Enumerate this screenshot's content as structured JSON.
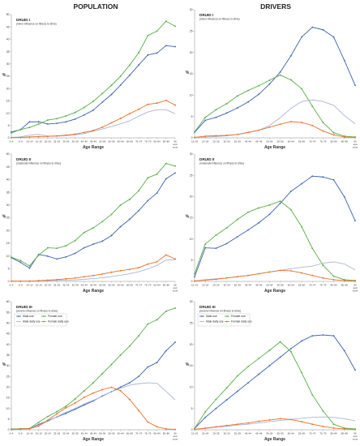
{
  "column_titles": [
    "POPULATION",
    "DRIVERS"
  ],
  "legend_labels": [
    "Male use",
    "Female use",
    "Male daily use",
    "Female daily use"
  ],
  "series_colors": [
    "#3a62b0",
    "#58ad46",
    "#a7b6d8",
    "#e8702a"
  ],
  "chart_data": [
    {
      "type": "line",
      "title": "DRUID I",
      "subtitle": "(minor influence on fitness to drive)",
      "xlabel": "Age Range",
      "ylabel": "%",
      "ylim": [
        0,
        50
      ],
      "yticks": [
        0,
        5,
        10,
        15,
        20,
        25,
        30,
        35,
        40,
        45,
        50
      ],
      "x": [
        "0–4",
        "5–9",
        "10–14",
        "15–19",
        "20–24",
        "25–29",
        "30–34",
        "35–39",
        "40–44",
        "45–49",
        "50–54",
        "55–59",
        "60–64",
        "65–69",
        "70–74",
        "75–79",
        "80–84",
        "85–89",
        "90 and more"
      ],
      "legend": false,
      "grid": false,
      "series": [
        {
          "name": "Male use",
          "values": [
            2.4,
            3.3,
            6.5,
            6.5,
            5.6,
            5.9,
            6.5,
            7.6,
            9.3,
            11.2,
            14.5,
            17.6,
            21.4,
            25.4,
            29.6,
            33.6,
            34.4,
            37.4,
            37.0
          ]
        },
        {
          "name": "Female use",
          "values": [
            2.0,
            3.4,
            4.2,
            5.6,
            7.2,
            7.8,
            8.9,
            10.3,
            12.3,
            14.8,
            18.0,
            21.3,
            25.0,
            29.5,
            34.5,
            41.5,
            43.3,
            47.3,
            45.3
          ]
        },
        {
          "name": "Male daily use",
          "values": [
            0.2,
            0.4,
            1.1,
            1.4,
            0.7,
            0.7,
            0.9,
            1.2,
            1.7,
            2.7,
            3.6,
            4.6,
            5.7,
            6.9,
            8.8,
            10.5,
            11.4,
            11.4,
            9.8
          ]
        },
        {
          "name": "Female daily use",
          "values": [
            0.1,
            0.2,
            0.4,
            0.5,
            0.6,
            0.8,
            1.1,
            1.5,
            2.2,
            3.0,
            4.3,
            6.1,
            7.9,
            9.8,
            11.6,
            13.6,
            14.1,
            15.2,
            13.3
          ]
        }
      ]
    },
    {
      "type": "line",
      "title": "DRUID II",
      "subtitle": "(moderate influence on fitness to drive)",
      "xlabel": "Age Range",
      "ylabel": "%",
      "ylim": [
        0,
        50
      ],
      "yticks": [
        0,
        5,
        10,
        15,
        20,
        25,
        30,
        35,
        40,
        45,
        50
      ],
      "x": [
        "0–4",
        "5–9",
        "10–14",
        "15–19",
        "20–24",
        "25–29",
        "30–34",
        "35–39",
        "40–44",
        "45–49",
        "50–54",
        "55–59",
        "60–64",
        "65–69",
        "70–74",
        "75–79",
        "80–84",
        "85–89",
        "90 and more"
      ],
      "legend": false,
      "grid": false,
      "series": [
        {
          "name": "Male use",
          "values": [
            9.3,
            7.5,
            5.2,
            10.6,
            9.9,
            8.8,
            9.6,
            11.0,
            13.2,
            14.6,
            15.8,
            18.0,
            21.5,
            24.4,
            27.8,
            31.7,
            34.7,
            40.3,
            42.6
          ]
        },
        {
          "name": "Female use",
          "values": [
            9.5,
            8.2,
            6.1,
            10.3,
            13.2,
            13.0,
            14.0,
            16.0,
            19.2,
            21.0,
            23.5,
            26.3,
            30.0,
            32.2,
            35.6,
            40.7,
            42.1,
            46.3,
            45.3
          ]
        },
        {
          "name": "Male daily use",
          "values": [
            0.1,
            0.1,
            0.1,
            0.2,
            0.3,
            0.4,
            0.5,
            0.6,
            0.8,
            1.1,
            1.4,
            1.9,
            2.4,
            3.0,
            3.8,
            4.9,
            6.3,
            8.4,
            8.5
          ]
        },
        {
          "name": "Female daily use",
          "values": [
            0.1,
            0.1,
            0.1,
            0.3,
            0.5,
            0.7,
            1.0,
            1.3,
            1.8,
            2.3,
            2.9,
            3.6,
            4.2,
            4.7,
            5.4,
            6.8,
            7.7,
            10.4,
            8.8
          ]
        }
      ]
    },
    {
      "type": "line",
      "title": "DRUID III",
      "subtitle": "(severe influence on fitness to drive)",
      "xlabel": "Age Range",
      "ylabel": "%",
      "ylim": [
        0,
        60
      ],
      "yticks": [
        0,
        5,
        10,
        15,
        20,
        25,
        30,
        35,
        40,
        45,
        50,
        55,
        60
      ],
      "x": [
        "0–4",
        "5–9",
        "10–14",
        "15–19",
        "20–24",
        "25–29",
        "30–34",
        "35–39",
        "40–44",
        "45–49",
        "50–54",
        "55–59",
        "60–64",
        "65–69",
        "70–74",
        "75–79",
        "80–84",
        "85–89",
        "90 and more"
      ],
      "legend": true,
      "legend_position": "upper-left",
      "grid": false,
      "series": [
        {
          "name": "Male use",
          "values": [
            0.3,
            0.5,
            0.5,
            2.5,
            4.2,
            6.0,
            7.7,
            9.6,
            11.6,
            13.5,
            15.8,
            17.8,
            20.0,
            22.0,
            25.0,
            29.4,
            31.5,
            37.0,
            41.0
          ]
        },
        {
          "name": "Female use",
          "values": [
            0.3,
            0.5,
            0.6,
            3.5,
            6.2,
            8.5,
            11.0,
            14.4,
            18.2,
            22.0,
            26.3,
            30.6,
            35.0,
            39.2,
            44.0,
            49.5,
            51.5,
            55.5,
            57.0
          ]
        },
        {
          "name": "Male daily use",
          "values": [
            0.1,
            0.4,
            0.5,
            2.2,
            3.9,
            6.1,
            8.2,
            10.0,
            12.1,
            13.8,
            15.6,
            17.8,
            19.5,
            20.9,
            21.6,
            22.0,
            21.8,
            18.0,
            14.0
          ]
        },
        {
          "name": "Female daily use",
          "values": [
            0.1,
            0.3,
            0.5,
            1.7,
            4.5,
            7.5,
            10.3,
            12.5,
            15.2,
            17.2,
            18.8,
            19.9,
            18.3,
            14.2,
            9.0,
            3.6,
            1.4,
            0.4,
            0.2
          ]
        }
      ]
    },
    {
      "type": "line",
      "title": "DRUID I",
      "subtitle": "(minor influence on fitness to drive)",
      "xlabel": "Age Range",
      "ylabel": "%",
      "ylim": [
        0,
        30
      ],
      "yticks": [
        0,
        5,
        10,
        15,
        20,
        25,
        30
      ],
      "x": [
        "15–19",
        "20–24",
        "25–29",
        "30–34",
        "35–39",
        "40–44",
        "45–49",
        "50–54",
        "55–59",
        "60–64",
        "65–69",
        "70–74",
        "75–79",
        "80–84",
        "85–89",
        "90 and more"
      ],
      "legend": false,
      "grid": false,
      "series": [
        {
          "name": "Male use",
          "values": [
            1.3,
            4.1,
            4.8,
            5.8,
            7.0,
            8.4,
            10.2,
            12.6,
            15.4,
            19.2,
            23.6,
            25.9,
            25.3,
            23.6,
            18.1,
            12.3
          ]
        },
        {
          "name": "Female use",
          "values": [
            1.4,
            4.8,
            6.6,
            8.0,
            9.8,
            11.1,
            12.2,
            13.5,
            14.7,
            13.6,
            11.5,
            7.4,
            3.6,
            1.2,
            0.4,
            0.2
          ]
        },
        {
          "name": "Male daily use",
          "values": [
            0.1,
            0.2,
            0.3,
            0.5,
            0.8,
            1.2,
            1.8,
            2.9,
            4.7,
            6.9,
            8.5,
            8.9,
            8.5,
            7.6,
            5.2,
            3.3
          ]
        },
        {
          "name": "Female daily use",
          "values": [
            0.1,
            0.4,
            0.5,
            0.6,
            0.8,
            1.3,
            1.8,
            2.5,
            3.2,
            3.8,
            3.6,
            2.9,
            1.6,
            0.7,
            0.2,
            0.1
          ]
        }
      ]
    },
    {
      "type": "line",
      "title": "DRUID II",
      "subtitle": "(moderate influence on fitness to drive)",
      "xlabel": "Age Range",
      "ylabel": "%",
      "ylim": [
        0,
        30
      ],
      "yticks": [
        0,
        5,
        10,
        15,
        20,
        25,
        30
      ],
      "x": [
        "15–19",
        "20–24",
        "25–29",
        "30–34",
        "35–39",
        "40–44",
        "45–49",
        "50–54",
        "55–59",
        "60–64",
        "65–69",
        "70–74",
        "75–79",
        "80–84",
        "85–89",
        "90 and more"
      ],
      "legend": false,
      "grid": false,
      "series": [
        {
          "name": "Male use",
          "values": [
            1.1,
            7.9,
            7.8,
            8.9,
            10.5,
            12.1,
            13.8,
            15.8,
            18.4,
            21.2,
            23.0,
            24.8,
            24.6,
            23.9,
            19.9,
            14.3
          ]
        },
        {
          "name": "Female use",
          "values": [
            1.8,
            8.8,
            10.9,
            12.6,
            14.6,
            16.3,
            17.3,
            18.0,
            18.9,
            16.9,
            12.9,
            7.8,
            3.8,
            1.2,
            0.4,
            0.2
          ]
        },
        {
          "name": "Male daily use",
          "values": [
            0.1,
            0.4,
            0.6,
            0.8,
            1.1,
            1.4,
            1.8,
            2.2,
            2.6,
            3.0,
            3.3,
            3.6,
            4.3,
            4.6,
            4.1,
            2.7
          ]
        },
        {
          "name": "Female daily use",
          "values": [
            0.1,
            0.3,
            0.5,
            0.8,
            1.1,
            1.4,
            1.8,
            2.2,
            2.6,
            2.5,
            2.0,
            1.4,
            0.8,
            0.4,
            0.2,
            0.1
          ]
        }
      ]
    },
    {
      "type": "line",
      "title": "DRUID III",
      "subtitle": "(severe influence on fitness to drive)",
      "xlabel": "Age Range",
      "ylabel": "%",
      "ylim": [
        0,
        30
      ],
      "yticks": [
        0,
        5,
        10,
        15,
        20,
        25,
        30
      ],
      "x": [
        "15–19",
        "20–24",
        "25–29",
        "30–34",
        "35–39",
        "40–44",
        "45–49",
        "50–54",
        "55–59",
        "60–64",
        "65–69",
        "70–74",
        "75–79",
        "80–84",
        "85–89",
        "90 and more"
      ],
      "legend": true,
      "legend_position": "upper-left",
      "grid": false,
      "series": [
        {
          "name": "Male use",
          "values": [
            0.3,
            2.9,
            5.0,
            7.0,
            9.0,
            11.0,
            13.0,
            15.0,
            17.0,
            19.0,
            20.8,
            22.0,
            22.2,
            22.0,
            18.5,
            14.0
          ]
        },
        {
          "name": "Female use",
          "values": [
            0.3,
            4.2,
            7.1,
            9.8,
            12.6,
            14.8,
            16.7,
            18.6,
            20.6,
            18.3,
            13.4,
            8.2,
            4.4,
            1.3,
            0.4,
            0.2
          ]
        },
        {
          "name": "Male daily use",
          "values": [
            0.1,
            0.3,
            0.6,
            0.8,
            1.1,
            1.3,
            1.6,
            1.9,
            2.2,
            2.4,
            2.7,
            2.9,
            3.0,
            2.9,
            2.6,
            2.1
          ]
        },
        {
          "name": "Female daily use",
          "values": [
            0.1,
            0.4,
            0.7,
            1.0,
            1.3,
            1.6,
            2.0,
            2.3,
            2.6,
            2.4,
            1.9,
            1.3,
            0.8,
            0.4,
            0.2,
            0.1
          ]
        }
      ]
    }
  ]
}
